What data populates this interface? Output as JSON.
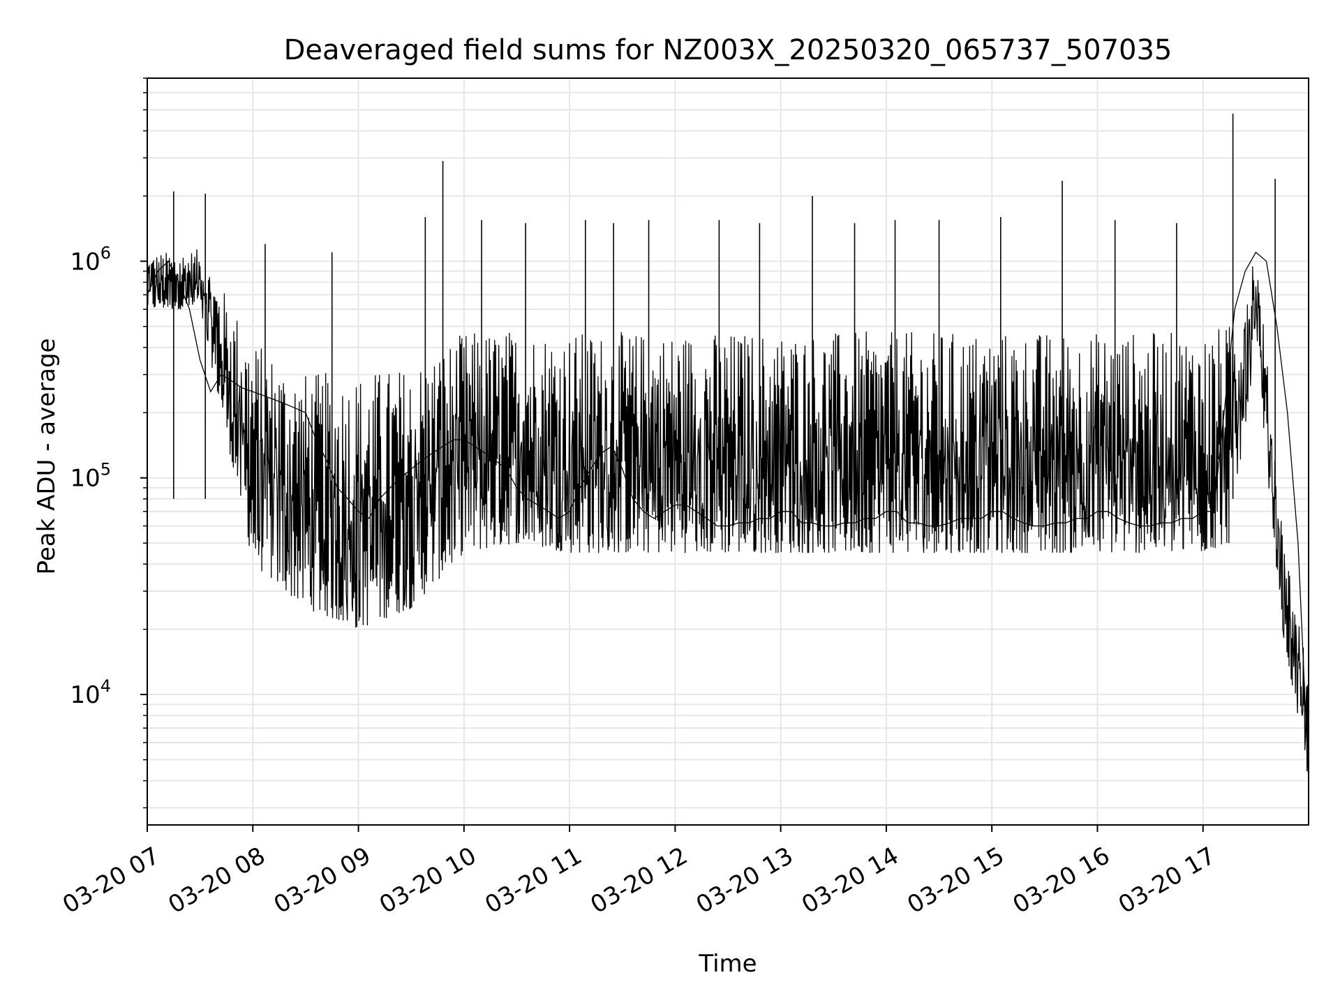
{
  "chart_data": {
    "type": "line",
    "title": "Deaveraged field sums for NZ003X_20250320_065737_507035",
    "xlabel": "Time",
    "ylabel": "Peak ADU - average",
    "x_scale": "time",
    "y_scale": "log",
    "xlim": [
      "2025-03-20T07:00",
      "2025-03-20T18:00"
    ],
    "ylim": [
      2500,
      7000000
    ],
    "x_ticks": [
      "03-20 07",
      "03-20 08",
      "03-20 09",
      "03-20 10",
      "03-20 11",
      "03-20 12",
      "03-20 13",
      "03-20 14",
      "03-20 15",
      "03-20 16",
      "03-20 17"
    ],
    "y_ticks": [
      {
        "value": 10000,
        "base": "10",
        "exp": "4"
      },
      {
        "value": 100000,
        "base": "10",
        "exp": "5"
      },
      {
        "value": 1000000,
        "base": "10",
        "exp": "6"
      }
    ],
    "grid": true,
    "line_color": "#000000",
    "grid_color": "#e6e6e6",
    "series": [
      {
        "x": [
          "2025-03-20T07:00",
          "2025-03-20T07:06",
          "2025-03-20T07:12",
          "2025-03-20T07:18",
          "2025-03-20T07:24",
          "2025-03-20T07:30",
          "2025-03-20T07:36",
          "2025-03-20T07:42",
          "2025-03-20T07:48",
          "2025-03-20T07:54",
          "2025-03-20T08:00",
          "2025-03-20T08:06",
          "2025-03-20T08:12",
          "2025-03-20T08:18",
          "2025-03-20T08:24",
          "2025-03-20T08:30",
          "2025-03-20T08:36",
          "2025-03-20T08:42",
          "2025-03-20T08:48",
          "2025-03-20T08:54",
          "2025-03-20T09:00",
          "2025-03-20T09:06",
          "2025-03-20T09:12",
          "2025-03-20T09:18",
          "2025-03-20T09:24",
          "2025-03-20T09:30",
          "2025-03-20T09:36",
          "2025-03-20T09:42",
          "2025-03-20T09:48",
          "2025-03-20T09:54",
          "2025-03-20T10:00",
          "2025-03-20T10:06",
          "2025-03-20T10:12",
          "2025-03-20T10:18",
          "2025-03-20T10:24",
          "2025-03-20T10:30",
          "2025-03-20T10:36",
          "2025-03-20T10:42",
          "2025-03-20T10:48",
          "2025-03-20T10:54",
          "2025-03-20T11:00",
          "2025-03-20T11:06",
          "2025-03-20T11:12",
          "2025-03-20T11:18",
          "2025-03-20T11:24",
          "2025-03-20T11:30",
          "2025-03-20T11:36",
          "2025-03-20T11:42",
          "2025-03-20T11:48",
          "2025-03-20T11:54",
          "2025-03-20T12:00",
          "2025-03-20T12:06",
          "2025-03-20T12:12",
          "2025-03-20T12:18",
          "2025-03-20T12:24",
          "2025-03-20T12:30",
          "2025-03-20T12:36",
          "2025-03-20T12:42",
          "2025-03-20T12:48",
          "2025-03-20T12:54",
          "2025-03-20T13:00",
          "2025-03-20T13:06",
          "2025-03-20T13:12",
          "2025-03-20T13:18",
          "2025-03-20T13:24",
          "2025-03-20T13:30",
          "2025-03-20T13:36",
          "2025-03-20T13:42",
          "2025-03-20T13:48",
          "2025-03-20T13:54",
          "2025-03-20T14:00",
          "2025-03-20T14:06",
          "2025-03-20T14:12",
          "2025-03-20T14:18",
          "2025-03-20T14:24",
          "2025-03-20T14:30",
          "2025-03-20T14:36",
          "2025-03-20T14:42",
          "2025-03-20T14:48",
          "2025-03-20T14:54",
          "2025-03-20T15:00",
          "2025-03-20T15:06",
          "2025-03-20T15:12",
          "2025-03-20T15:18",
          "2025-03-20T15:24",
          "2025-03-20T15:30",
          "2025-03-20T15:36",
          "2025-03-20T15:42",
          "2025-03-20T15:48",
          "2025-03-20T15:54",
          "2025-03-20T16:00",
          "2025-03-20T16:06",
          "2025-03-20T16:12",
          "2025-03-20T16:18",
          "2025-03-20T16:24",
          "2025-03-20T16:30",
          "2025-03-20T16:36",
          "2025-03-20T16:42",
          "2025-03-20T16:48",
          "2025-03-20T16:54",
          "2025-03-20T17:00",
          "2025-03-20T17:06",
          "2025-03-20T17:12",
          "2025-03-20T17:18",
          "2025-03-20T17:24",
          "2025-03-20T17:30",
          "2025-03-20T17:36",
          "2025-03-20T17:42",
          "2025-03-20T17:48",
          "2025-03-20T17:54",
          "2025-03-20T18:00"
        ],
        "y": [
          700000,
          900000,
          1000000,
          800000,
          600000,
          350000,
          250000,
          300000,
          280000,
          260000,
          250000,
          240000,
          230000,
          220000,
          210000,
          200000,
          150000,
          120000,
          90000,
          80000,
          70000,
          65000,
          80000,
          90000,
          100000,
          110000,
          120000,
          130000,
          140000,
          150000,
          150000,
          140000,
          130000,
          120000,
          110000,
          90000,
          80000,
          75000,
          70000,
          65000,
          70000,
          90000,
          110000,
          130000,
          140000,
          110000,
          80000,
          70000,
          65000,
          70000,
          75000,
          75000,
          70000,
          65000,
          60000,
          60000,
          62000,
          62000,
          65000,
          65000,
          70000,
          70000,
          62000,
          62000,
          60000,
          60000,
          62000,
          62000,
          65000,
          65000,
          70000,
          70000,
          62000,
          62000,
          60000,
          60000,
          62000,
          65000,
          65000,
          65000,
          70000,
          70000,
          65000,
          62000,
          60000,
          60000,
          62000,
          62000,
          65000,
          65000,
          70000,
          70000,
          65000,
          62000,
          60000,
          60000,
          62000,
          62000,
          65000,
          65000,
          70000,
          70000,
          200000,
          600000,
          900000,
          1100000,
          1000000,
          500000,
          200000,
          50000,
          4000
        ]
      }
    ],
    "envelope_x": [
      "2025-03-20T07:00",
      "2025-03-20T07:30",
      "2025-03-20T08:00",
      "2025-03-20T08:30",
      "2025-03-20T09:00",
      "2025-03-20T09:30",
      "2025-03-20T10:00",
      "2025-03-20T10:30",
      "2025-03-20T11:00",
      "2025-03-20T11:30",
      "2025-03-20T12:00",
      "2025-03-20T12:30",
      "2025-03-20T13:00",
      "2025-03-20T13:30",
      "2025-03-20T14:00",
      "2025-03-20T14:30",
      "2025-03-20T15:00",
      "2025-03-20T15:30",
      "2025-03-20T16:00",
      "2025-03-20T16:30",
      "2025-03-20T17:00",
      "2025-03-20T17:15",
      "2025-03-20T17:30",
      "2025-03-20T17:45",
      "2025-03-20T18:00"
    ],
    "envelope_low": [
      600000,
      600000,
      40000,
      25000,
      20000,
      25000,
      45000,
      50000,
      45000,
      45000,
      45000,
      45000,
      45000,
      45000,
      45000,
      45000,
      45000,
      45000,
      45000,
      45000,
      45000,
      50000,
      400000,
      20000,
      4000
    ],
    "envelope_high": [
      1400000,
      1500000,
      1200000,
      900000,
      1000000,
      1000000,
      1300000,
      1300000,
      1300000,
      1300000,
      1300000,
      1300000,
      1300000,
      1300000,
      1300000,
      1300000,
      1300000,
      1300000,
      1300000,
      1300000,
      1300000,
      1400000,
      2000000,
      100000,
      20000
    ],
    "spikes": [
      {
        "x": "2025-03-20T07:15",
        "y": 2100000
      },
      {
        "x": "2025-03-20T07:33",
        "y": 2050000
      },
      {
        "x": "2025-03-20T08:07",
        "y": 1200000
      },
      {
        "x": "2025-03-20T08:45",
        "y": 1100000
      },
      {
        "x": "2025-03-20T09:38",
        "y": 1600000
      },
      {
        "x": "2025-03-20T09:48",
        "y": 2900000
      },
      {
        "x": "2025-03-20T10:10",
        "y": 1550000
      },
      {
        "x": "2025-03-20T10:35",
        "y": 1500000
      },
      {
        "x": "2025-03-20T11:09",
        "y": 1550000
      },
      {
        "x": "2025-03-20T11:25",
        "y": 1500000
      },
      {
        "x": "2025-03-20T11:45",
        "y": 1550000
      },
      {
        "x": "2025-03-20T12:25",
        "y": 1550000
      },
      {
        "x": "2025-03-20T12:48",
        "y": 1500000
      },
      {
        "x": "2025-03-20T13:18",
        "y": 2000000
      },
      {
        "x": "2025-03-20T13:42",
        "y": 1500000
      },
      {
        "x": "2025-03-20T14:05",
        "y": 1550000
      },
      {
        "x": "2025-03-20T14:30",
        "y": 1550000
      },
      {
        "x": "2025-03-20T15:05",
        "y": 1600000
      },
      {
        "x": "2025-03-20T15:40",
        "y": 2350000
      },
      {
        "x": "2025-03-20T16:10",
        "y": 1550000
      },
      {
        "x": "2025-03-20T16:45",
        "y": 1500000
      },
      {
        "x": "2025-03-20T17:17",
        "y": 4800000
      },
      {
        "x": "2025-03-20T17:41",
        "y": 2400000
      }
    ]
  }
}
